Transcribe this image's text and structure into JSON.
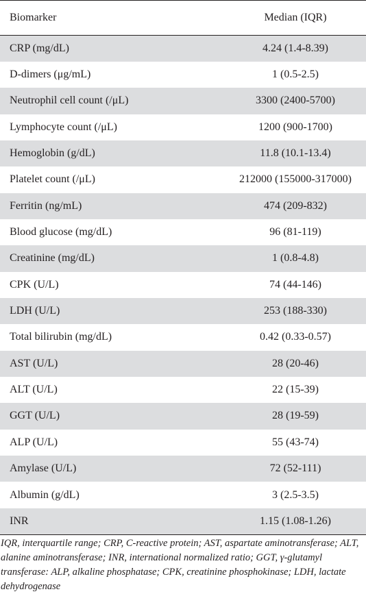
{
  "table": {
    "headers": {
      "biomarker": "Biomarker",
      "median": "Median  (IQR)"
    },
    "rows": [
      {
        "biomarker": "CRP (mg/dL)",
        "median": "4.24 (1.4-8.39)"
      },
      {
        "biomarker": "D-dimers (μg/mL)",
        "median": "1 (0.5-2.5)"
      },
      {
        "biomarker": "Neutrophil cell count (/μL)",
        "median": "3300 (2400-5700)"
      },
      {
        "biomarker": "Lymphocyte count (/μL)",
        "median": "1200 (900-1700)"
      },
      {
        "biomarker": "Hemoglobin (g/dL)",
        "median": "11.8 (10.1-13.4)"
      },
      {
        "biomarker": "Platelet count (/μL)",
        "median": "212000 (155000-317000)"
      },
      {
        "biomarker": "Ferritin (ng/mL)",
        "median": "474 (209-832)"
      },
      {
        "biomarker": "Blood glucose (mg/dL)",
        "median": "96 (81-119)"
      },
      {
        "biomarker": "Creatinine (mg/dL)",
        "median": "1 (0.8-4.8)"
      },
      {
        "biomarker": "CPK (U/L)",
        "median": "74 (44-146)"
      },
      {
        "biomarker": "LDH (U/L)",
        "median": "253 (188-330)"
      },
      {
        "biomarker": "Total bilirubin (mg/dL)",
        "median": "0.42 (0.33-0.57)"
      },
      {
        "biomarker": "AST (U/L)",
        "median": "28 (20-46)"
      },
      {
        "biomarker": "ALT (U/L)",
        "median": "22 (15-39)"
      },
      {
        "biomarker": "GGT (U/L)",
        "median": "28 (19-59)"
      },
      {
        "biomarker": "ALP (U/L)",
        "median": "55 (43-74)"
      },
      {
        "biomarker": "Amylase (U/L)",
        "median": "72 (52-111)"
      },
      {
        "biomarker": "Albumin (g/dL)",
        "median": "3 (2.5-3.5)"
      },
      {
        "biomarker": "INR",
        "median": "1.15 (1.08-1.26)"
      }
    ]
  },
  "footnote": "IQR, interquartile range; CRP, C-reactive protein; AST, aspartate aminotransferase; ALT, alanine aminotransferase; INR, international normalized ratio; GGT, γ-glutamyl transferase: ALP, alkaline phosphatase; CPK, creatinine phosphokinase; LDH, lactate dehydrogenase",
  "colors": {
    "row_shade": "#dcdddf",
    "text": "#231f20",
    "rule": "#231f20"
  }
}
